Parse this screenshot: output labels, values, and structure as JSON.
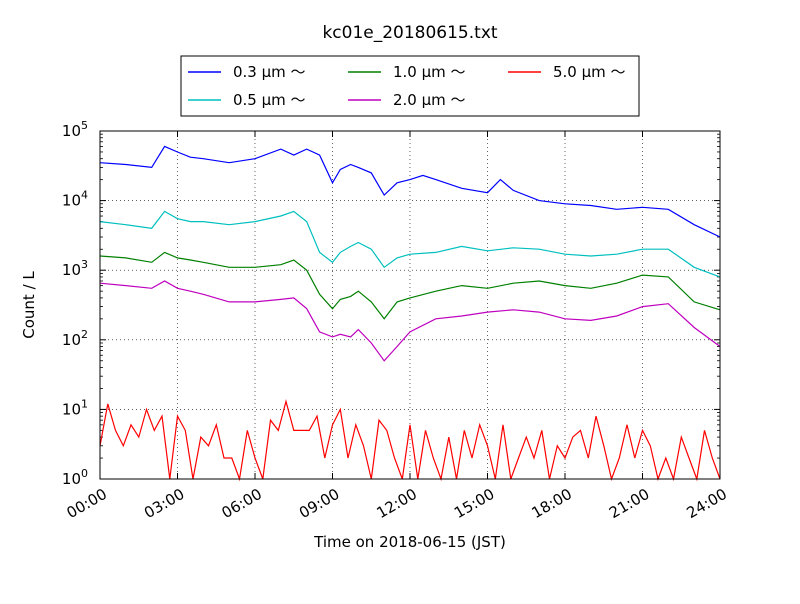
{
  "chart_data": {
    "type": "line",
    "title": "kc01e_20180615.txt",
    "xlabel": "Time on 2018-06-15 (JST)",
    "ylabel": "Count / L",
    "yscale": "log",
    "ylim": [
      1,
      100000
    ],
    "xlim": [
      0,
      24
    ],
    "x_tick_labels": [
      "00:00",
      "03:00",
      "06:00",
      "09:00",
      "12:00",
      "15:00",
      "18:00",
      "21:00",
      "24:00"
    ],
    "y_tick_labels": [
      {
        "base": "10",
        "exp": "0"
      },
      {
        "base": "10",
        "exp": "1"
      },
      {
        "base": "10",
        "exp": "2"
      },
      {
        "base": "10",
        "exp": "3"
      },
      {
        "base": "10",
        "exp": "4"
      },
      {
        "base": "10",
        "exp": "5"
      }
    ],
    "grid": true,
    "legend_position": "top-center",
    "series": [
      {
        "name": "0.3 μm ～",
        "color": "#0000ff",
        "x": [
          0,
          1,
          2,
          2.5,
          3,
          3.5,
          4,
          5,
          6,
          7,
          7.5,
          8,
          8.5,
          9,
          9.3,
          9.7,
          10,
          10.5,
          11,
          11.5,
          12,
          12.5,
          13,
          14,
          15,
          15.5,
          16,
          17,
          18,
          19,
          20,
          21,
          22,
          23,
          24
        ],
        "y": [
          35000,
          33000,
          30000,
          60000,
          50000,
          42000,
          40000,
          35000,
          40000,
          55000,
          45000,
          55000,
          45000,
          18000,
          28000,
          33000,
          30000,
          25000,
          12000,
          18000,
          20000,
          23000,
          20000,
          15000,
          13000,
          20000,
          14000,
          10000,
          9000,
          8500,
          7500,
          8000,
          7500,
          4500,
          3000
        ]
      },
      {
        "name": "0.5 μm ～",
        "color": "#00bfbf",
        "x": [
          0,
          1,
          2,
          2.5,
          3,
          3.5,
          4,
          5,
          6,
          7,
          7.5,
          8,
          8.5,
          9,
          9.3,
          9.7,
          10,
          10.5,
          11,
          11.5,
          12,
          13,
          14,
          15,
          16,
          17,
          18,
          19,
          20,
          21,
          22,
          23,
          24
        ],
        "y": [
          5000,
          4500,
          4000,
          7000,
          5500,
          5000,
          5000,
          4500,
          5000,
          6000,
          7000,
          5000,
          1800,
          1300,
          1800,
          2200,
          2500,
          2000,
          1100,
          1500,
          1700,
          1800,
          2200,
          1900,
          2100,
          2000,
          1700,
          1600,
          1700,
          2000,
          2000,
          1100,
          800
        ]
      },
      {
        "name": "1.0 μm ～",
        "color": "#008000",
        "x": [
          0,
          1,
          2,
          2.5,
          3,
          3.5,
          4,
          5,
          6,
          7,
          7.5,
          8,
          8.5,
          9,
          9.3,
          9.7,
          10,
          10.5,
          11,
          11.5,
          12,
          13,
          14,
          15,
          16,
          17,
          18,
          19,
          20,
          21,
          22,
          23,
          24
        ],
        "y": [
          1600,
          1500,
          1300,
          1800,
          1500,
          1400,
          1300,
          1100,
          1100,
          1200,
          1400,
          1000,
          450,
          280,
          380,
          420,
          500,
          350,
          200,
          350,
          400,
          500,
          600,
          550,
          650,
          700,
          600,
          550,
          650,
          850,
          800,
          350,
          270
        ]
      },
      {
        "name": "2.0 μm ～",
        "color": "#bf00bf",
        "x": [
          0,
          1,
          2,
          2.5,
          3,
          3.5,
          4,
          5,
          6,
          7,
          7.5,
          8,
          8.5,
          9,
          9.3,
          9.7,
          10,
          10.5,
          11,
          11.5,
          12,
          13,
          14,
          15,
          16,
          17,
          18,
          19,
          20,
          21,
          22,
          23,
          24
        ],
        "y": [
          650,
          600,
          550,
          700,
          550,
          500,
          450,
          350,
          350,
          380,
          400,
          280,
          130,
          110,
          120,
          110,
          140,
          90,
          50,
          80,
          130,
          200,
          220,
          250,
          270,
          250,
          200,
          190,
          220,
          300,
          330,
          150,
          80
        ]
      },
      {
        "name": "5.0 μm ～",
        "color": "#ff0000",
        "x": [
          0,
          0.3,
          0.6,
          0.9,
          1.2,
          1.5,
          1.8,
          2.1,
          2.4,
          2.7,
          3.0,
          3.3,
          3.6,
          3.9,
          4.2,
          4.5,
          4.8,
          5.1,
          5.4,
          5.7,
          6.0,
          6.3,
          6.6,
          6.9,
          7.2,
          7.5,
          7.8,
          8.1,
          8.4,
          8.7,
          9.0,
          9.3,
          9.6,
          9.9,
          10.2,
          10.5,
          10.8,
          11.1,
          11.4,
          11.7,
          12.0,
          12.3,
          12.6,
          12.9,
          13.2,
          13.5,
          13.8,
          14.1,
          14.4,
          14.7,
          15.0,
          15.3,
          15.6,
          15.9,
          16.2,
          16.5,
          16.8,
          17.1,
          17.4,
          17.7,
          18.0,
          18.3,
          18.6,
          18.9,
          19.2,
          19.5,
          19.8,
          20.1,
          20.4,
          20.7,
          21.0,
          21.3,
          21.6,
          21.9,
          22.2,
          22.5,
          22.8,
          23.1,
          23.4,
          23.7,
          24.0
        ],
        "y": [
          3,
          12,
          5,
          3,
          6,
          4,
          10,
          5,
          8,
          1,
          8,
          5,
          1,
          4,
          3,
          6,
          2,
          2,
          1,
          5,
          2,
          1,
          7,
          5,
          13,
          5,
          5,
          5,
          8,
          2,
          6,
          10,
          2,
          6,
          3,
          1,
          7,
          5,
          2,
          1,
          6,
          1,
          5,
          2,
          1,
          4,
          1,
          5,
          2,
          6,
          3,
          1,
          6,
          1,
          2,
          4,
          2,
          5,
          1,
          3,
          2,
          4,
          5,
          2,
          8,
          3,
          1,
          2,
          6,
          2,
          5,
          3,
          1,
          2,
          1,
          4,
          2,
          1,
          5,
          2,
          1
        ]
      }
    ]
  }
}
